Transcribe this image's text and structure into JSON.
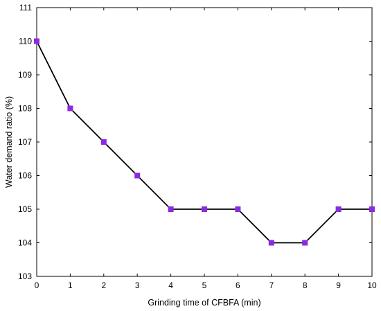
{
  "chart_data": {
    "type": "line",
    "title": "",
    "xlabel": "Grinding time of CFBFA (min)",
    "ylabel": "Water demand ratio (%)",
    "xlim": [
      0,
      10
    ],
    "ylim": [
      103,
      111
    ],
    "xticks": [
      0,
      1,
      2,
      3,
      4,
      5,
      6,
      7,
      8,
      9,
      10
    ],
    "yticks": [
      103,
      104,
      105,
      106,
      107,
      108,
      109,
      110,
      111
    ],
    "grid": false,
    "legend": "none",
    "series": [
      {
        "x": [
          0,
          1,
          2,
          3,
          4,
          5,
          6,
          7,
          8,
          9,
          10
        ],
        "values": [
          110,
          108,
          107,
          106,
          105,
          105,
          105,
          104,
          104,
          105,
          105
        ],
        "marker": "square",
        "line_color": "#000000",
        "marker_color": "#8a2be2"
      }
    ]
  }
}
